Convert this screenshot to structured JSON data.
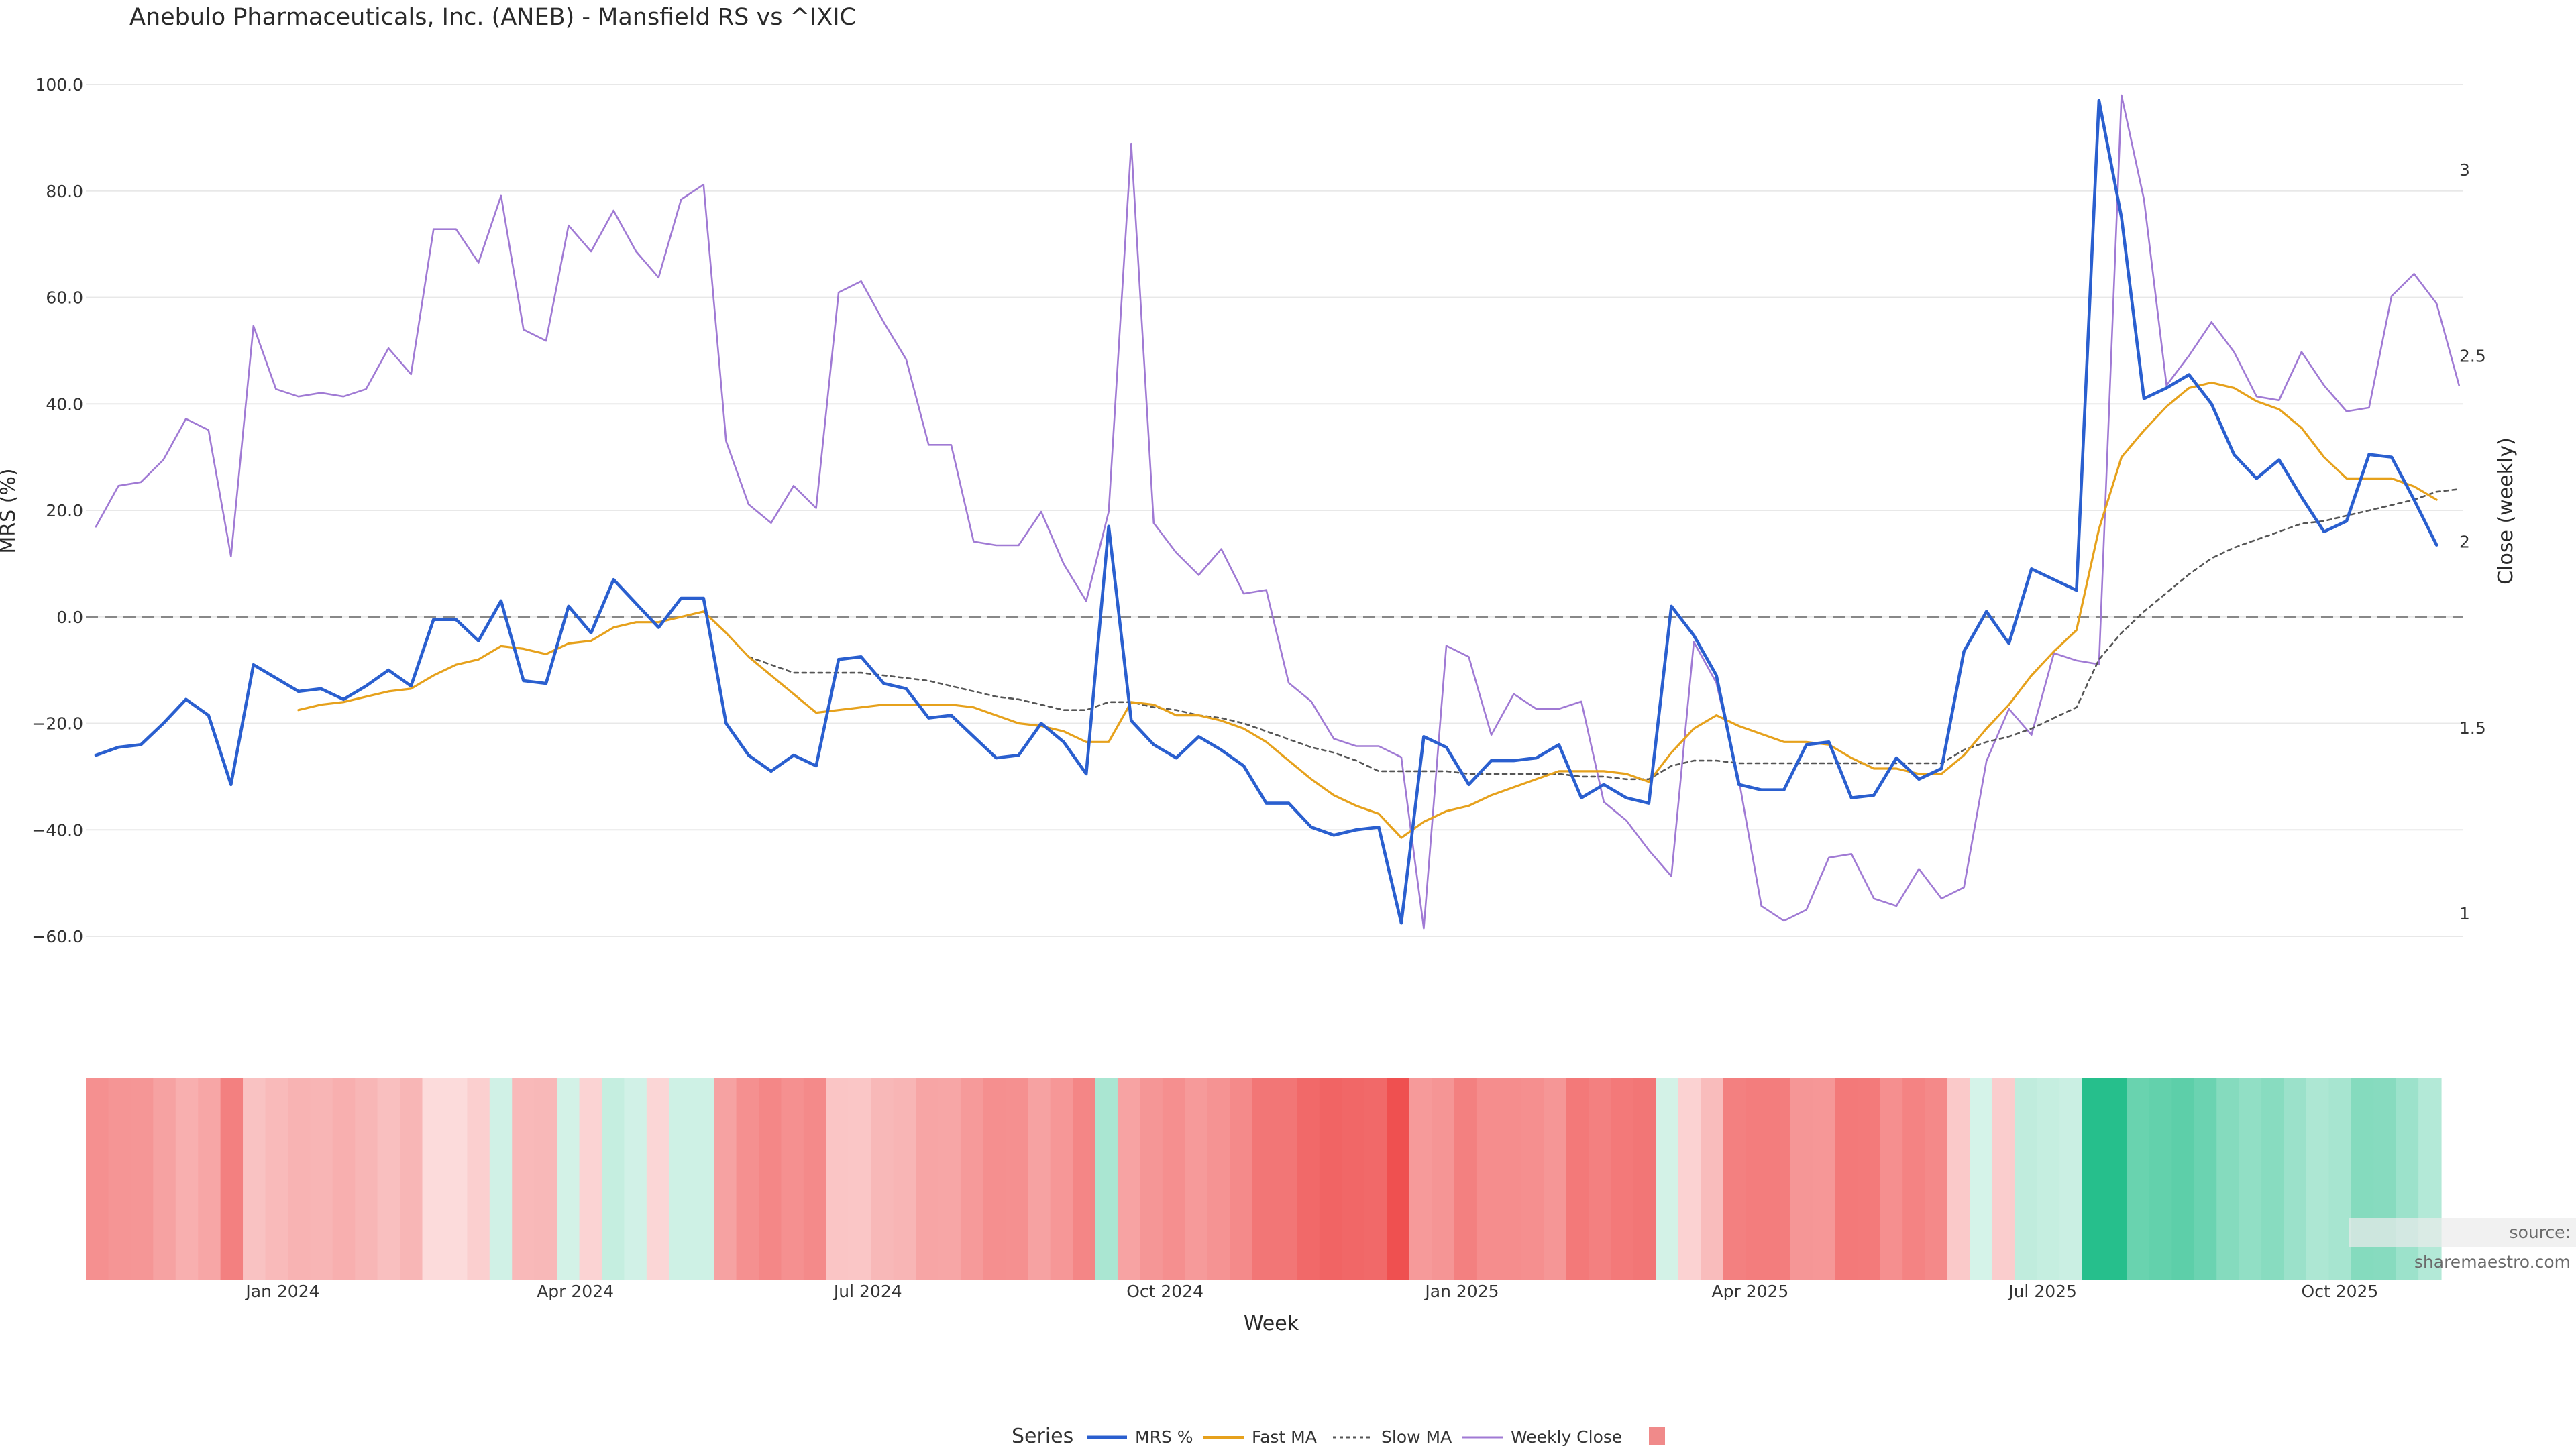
{
  "title": "Anebulo Pharmaceuticals, Inc. (ANEB) - Mansfield RS vs ^IXIC",
  "source": "source: sharemaestro.com",
  "legend": {
    "title": "Series",
    "items": [
      "MRS %",
      "Fast MA",
      "Slow MA",
      "Weekly Close",
      ""
    ]
  },
  "colors": {
    "mrs": "#2a5fcf",
    "fast": "#e6a11c",
    "slow": "#555555",
    "close": "#a07ad4",
    "zero": "#888888",
    "positive_strong": "#26bf8c",
    "negative_strong": "#ef5050"
  },
  "chart_data": {
    "type": "line",
    "title": "Anebulo Pharmaceuticals, Inc. (ANEB) - Mansfield RS vs ^IXIC",
    "xlabel": "Week",
    "ylabel": "MRS (%)",
    "y2label": "Close (weekly)",
    "ylim": [
      -70,
      103
    ],
    "y2lim": [
      0.85,
      3.1
    ],
    "yticks": [
      100,
      80,
      60,
      40,
      20,
      0,
      -20,
      -40,
      -60
    ],
    "ytick_labels": [
      "100.0",
      "80.0",
      "60.0",
      "40.0",
      "20.0",
      "0.0",
      "−20.0",
      "−40.0",
      "−60.0"
    ],
    "y2ticks": [
      3,
      2.5,
      2,
      1.5,
      1
    ],
    "y2tick_labels": [
      "3",
      "2.5",
      "2",
      "1.5",
      "1"
    ],
    "xticks": [
      {
        "week": 8.3,
        "label": "Jan 2024"
      },
      {
        "week": 21.3,
        "label": "Apr 2024"
      },
      {
        "week": 34.3,
        "label": "Jul 2024"
      },
      {
        "week": 47.5,
        "label": "Oct 2024"
      },
      {
        "week": 60.7,
        "label": "Jan 2025"
      },
      {
        "week": 73.5,
        "label": "Apr 2025"
      },
      {
        "week": 86.5,
        "label": "Jul 2025"
      },
      {
        "week": 99.7,
        "label": "Oct 2025"
      }
    ],
    "weeks_count": 106,
    "series": [
      {
        "name": "MRS %",
        "values": [
          -26,
          -24.5,
          -24,
          -20,
          -15.5,
          -18.5,
          -31.5,
          -9,
          -11.5,
          -14,
          -13.5,
          -15.5,
          -13,
          -10,
          -13,
          -0.5,
          -0.5,
          -4.5,
          3,
          -12,
          -12.5,
          2,
          -3,
          7,
          2.5,
          -2,
          3.5,
          3.5,
          -20,
          -26,
          -29,
          -26,
          -28,
          -8,
          -7.5,
          -12.5,
          -13.5,
          -19,
          -18.5,
          -22.5,
          -26.5,
          -26,
          -20,
          -23.5,
          -29.5,
          17,
          -19.5,
          -24,
          -26.5,
          -22.5,
          -25,
          -28,
          -35,
          -35,
          -39.5,
          -41,
          -40,
          -39.5,
          -57.5,
          -22.5,
          -24.5,
          -31.5,
          -27,
          -27,
          -26.5,
          -24,
          -34,
          -31.5,
          -34,
          -35,
          2,
          -3.5,
          -11,
          -31.5,
          -32.5,
          -32.5,
          -24,
          -23.5,
          -34,
          -33.5,
          -26.5,
          -30.5,
          -28.5,
          -6.5,
          1,
          -5,
          9,
          7,
          5,
          97,
          75,
          41,
          43,
          45.5,
          40,
          30.5,
          26,
          29.5,
          22.5,
          16,
          18,
          30.5,
          30,
          22,
          13.5
        ]
      },
      {
        "name": "Fast MA",
        "values": [
          null,
          null,
          null,
          null,
          null,
          null,
          null,
          null,
          null,
          -17.5,
          -16.5,
          -16,
          -15,
          -14,
          -13.5,
          -11,
          -9,
          -8,
          -5.5,
          -6,
          -7,
          -5,
          -4.5,
          -2,
          -1,
          -1,
          0,
          1,
          -3,
          -7.5,
          -11,
          -14.5,
          -18,
          -17.5,
          -17,
          -16.5,
          -16.5,
          -16.5,
          -16.5,
          -17,
          -18.5,
          -20,
          -20.5,
          -21.5,
          -23.5,
          -23.5,
          -16,
          -16.5,
          -18.5,
          -18.5,
          -19.5,
          -21,
          -23.5,
          -27,
          -30.5,
          -33.5,
          -35.5,
          -37,
          -41.5,
          -38.5,
          -36.5,
          -35.5,
          -33.5,
          -32,
          -30.5,
          -29,
          -29,
          -29,
          -29.5,
          -31,
          -25.5,
          -21,
          -18.5,
          -20.5,
          -22,
          -23.5,
          -23.5,
          -24,
          -26.5,
          -28.5,
          -28.5,
          -29.5,
          -29.5,
          -26,
          -21,
          -16.5,
          -11,
          -6.5,
          -2.5,
          16.5,
          30,
          35,
          39.5,
          43,
          44,
          43,
          40.5,
          39,
          35.5,
          30,
          26,
          26,
          26,
          24.5,
          22
        ]
      },
      {
        "name": "Slow MA",
        "values": [
          null,
          null,
          null,
          null,
          null,
          null,
          null,
          null,
          null,
          null,
          null,
          null,
          null,
          null,
          null,
          null,
          null,
          null,
          null,
          null,
          null,
          null,
          null,
          null,
          null,
          null,
          null,
          null,
          null,
          -7.5,
          -9,
          -10.5,
          -10.5,
          -10.5,
          -10.5,
          -11,
          -11.5,
          -12,
          -13,
          -14,
          -15,
          -15.5,
          -16.5,
          -17.5,
          -17.5,
          -16,
          -16,
          -17,
          -17.5,
          -18.5,
          -19,
          -20,
          -21.5,
          -23,
          -24.5,
          -25.5,
          -27,
          -29,
          -29,
          -29,
          -29,
          -29.5,
          -29.5,
          -29.5,
          -29.5,
          -29.5,
          -30,
          -30,
          -30.5,
          -30.5,
          -28,
          -27,
          -27,
          -27.5,
          -27.5,
          -27.5,
          -27.5,
          -27.5,
          -27.5,
          -27.5,
          -27.5,
          -27.5,
          -27.5,
          -25,
          -23.5,
          -22.5,
          -21,
          -19,
          -17,
          -8,
          -3,
          1,
          4.5,
          8,
          11,
          13,
          14.5,
          16,
          17.5,
          18,
          19,
          20,
          21,
          22,
          23.5,
          24
        ]
      },
      {
        "name": "Weekly Close",
        "axis": "right",
        "values": [
          2.04,
          2.15,
          2.16,
          2.22,
          2.33,
          2.3,
          1.96,
          2.58,
          2.41,
          2.39,
          2.4,
          2.39,
          2.41,
          2.52,
          2.45,
          2.84,
          2.84,
          2.75,
          2.93,
          2.57,
          2.54,
          2.85,
          2.78,
          2.89,
          2.78,
          2.71,
          2.92,
          2.96,
          2.27,
          2.1,
          2.05,
          2.15,
          2.09,
          2.67,
          2.7,
          2.59,
          2.49,
          2.26,
          2.26,
          2.0,
          1.99,
          1.99,
          2.08,
          1.94,
          1.84,
          2.08,
          3.07,
          2.05,
          1.97,
          1.91,
          1.98,
          1.86,
          1.87,
          1.62,
          1.57,
          1.47,
          1.45,
          1.45,
          1.42,
          0.96,
          1.72,
          1.69,
          1.48,
          1.59,
          1.55,
          1.55,
          1.57,
          1.3,
          1.25,
          1.17,
          1.1,
          1.73,
          1.62,
          1.36,
          1.02,
          0.98,
          1.01,
          1.15,
          1.16,
          1.04,
          1.02,
          1.12,
          1.04,
          1.07,
          1.41,
          1.55,
          1.48,
          1.7,
          1.68,
          1.67,
          3.2,
          2.92,
          2.42,
          2.5,
          2.59,
          2.51,
          2.39,
          2.38,
          2.51,
          2.42,
          2.35,
          2.36,
          2.66,
          2.72,
          2.64,
          2.42
        ]
      }
    ],
    "heatmap": {
      "description": "weekly MRS strength band",
      "values": [
        -26,
        -24.5,
        -24,
        -20,
        -15.5,
        -18.5,
        -31.5,
        -9,
        -11.5,
        -14,
        -13.5,
        -15.5,
        -13,
        -10,
        -13,
        -0.5,
        -0.5,
        -4.5,
        3,
        -12,
        -12.5,
        2,
        -3,
        7,
        2.5,
        -2,
        3.5,
        3.5,
        -20,
        -26,
        -29,
        -26,
        -28,
        -8,
        -7.5,
        -12.5,
        -13.5,
        -19,
        -18.5,
        -22.5,
        -26.5,
        -26,
        -20,
        -23.5,
        -29.5,
        17,
        -19.5,
        -24,
        -26.5,
        -22.5,
        -25,
        -28,
        -35,
        -35,
        -39.5,
        -41,
        -40,
        -39.5,
        -57.5,
        -22.5,
        -24.5,
        -31.5,
        -27,
        -27,
        -26.5,
        -24,
        -34,
        -31.5,
        -34,
        -35,
        2,
        -3.5,
        -11,
        -31.5,
        -32.5,
        -32.5,
        -24,
        -23.5,
        -34,
        -33.5,
        -26.5,
        -30.5,
        -28.5,
        -6.5,
        1,
        -5,
        9,
        7,
        5,
        97,
        75,
        41,
        43,
        45.5,
        40,
        30.5,
        26,
        29.5,
        22.5,
        16,
        18,
        30.5,
        30,
        22,
        13.5
      ]
    }
  }
}
